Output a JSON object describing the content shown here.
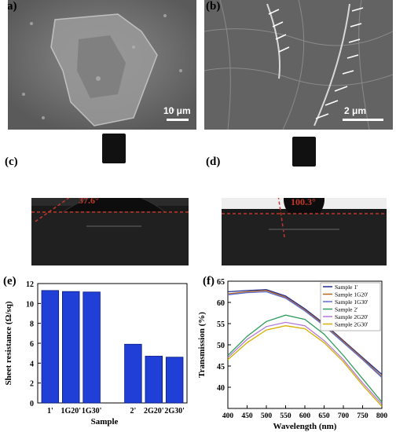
{
  "panels": {
    "a": {
      "label": "(a)",
      "scale": "10 μm"
    },
    "b": {
      "label": "(b)",
      "scale": "2 μm"
    },
    "c": {
      "label": "(c)",
      "angle": "37.6°"
    },
    "d": {
      "label": "(d)",
      "angle": "100.3°"
    },
    "e": {
      "label": "(e)"
    },
    "f": {
      "label": "(f)"
    }
  },
  "colors": {
    "angle_red": "#c0392b",
    "bar_blue": "#1f3fd6"
  },
  "chart_data": [
    {
      "type": "bar",
      "panel": "e",
      "categories": [
        "1'",
        "1G20'",
        "1G30'",
        "2'",
        "2G20'",
        "2G30'"
      ],
      "values": [
        11.3,
        11.2,
        11.15,
        5.9,
        4.7,
        4.6
      ],
      "xlabel": "Sample",
      "ylabel": "Sheet resistance (Ω/sq)",
      "ylim": [
        0,
        12
      ],
      "yticks": [
        0,
        2,
        4,
        6,
        8,
        10,
        12
      ],
      "grid": false
    },
    {
      "type": "line",
      "panel": "f",
      "xlabel": "Wavelength (nm)",
      "ylabel": "Transmission (%)",
      "xlim": [
        400,
        800
      ],
      "ylim": [
        35,
        65
      ],
      "xticks": [
        400,
        450,
        500,
        550,
        600,
        650,
        700,
        750,
        800
      ],
      "yticks": [
        40,
        45,
        50,
        55,
        60,
        65
      ],
      "legend": "top-right",
      "grid": false,
      "x": [
        400,
        450,
        500,
        550,
        600,
        650,
        700,
        750,
        800
      ],
      "series": [
        {
          "name": "Sample 1'",
          "color": "#1f2a8a",
          "values": [
            62.5,
            62.8,
            63.0,
            61.5,
            58.5,
            55.0,
            51.0,
            47.0,
            43.0
          ]
        },
        {
          "name": "Sample 1G20'",
          "color": "#b5651d",
          "values": [
            62.0,
            62.5,
            62.8,
            61.2,
            58.2,
            54.8,
            50.8,
            46.8,
            42.5
          ]
        },
        {
          "name": "Sample 1G30'",
          "color": "#5b6fd6",
          "values": [
            61.8,
            62.3,
            62.5,
            61.0,
            58.0,
            54.5,
            50.5,
            46.5,
            42.3
          ]
        },
        {
          "name": "Sample 2'",
          "color": "#2e9c5a",
          "values": [
            47.5,
            52.0,
            55.5,
            57.0,
            56.0,
            52.5,
            47.5,
            42.0,
            36.5
          ]
        },
        {
          "name": "Sample 2G20'",
          "color": "#b277d6",
          "values": [
            47.0,
            51.3,
            54.3,
            55.3,
            54.5,
            51.0,
            46.5,
            41.0,
            36.0
          ]
        },
        {
          "name": "Sample 2G30'",
          "color": "#d4b000",
          "values": [
            46.5,
            50.5,
            53.5,
            54.5,
            53.8,
            50.5,
            46.0,
            40.5,
            35.5
          ]
        }
      ]
    }
  ]
}
